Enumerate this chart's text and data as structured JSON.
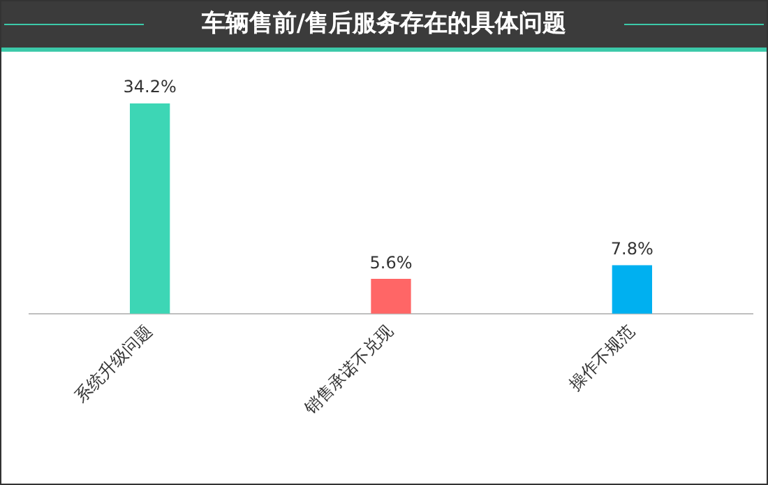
{
  "chart_data": {
    "type": "bar",
    "title": "车辆售前/售后服务存在的具体问题",
    "categories": [
      "系统升级问题",
      "销售承诺不兑现",
      "操作不规范"
    ],
    "values": [
      34.2,
      5.6,
      7.8
    ],
    "colors": [
      "#3dd6b5",
      "#ff6666",
      "#00b0f0"
    ],
    "value_labels": [
      "34.2%",
      "5.6%",
      "7.8%"
    ]
  }
}
